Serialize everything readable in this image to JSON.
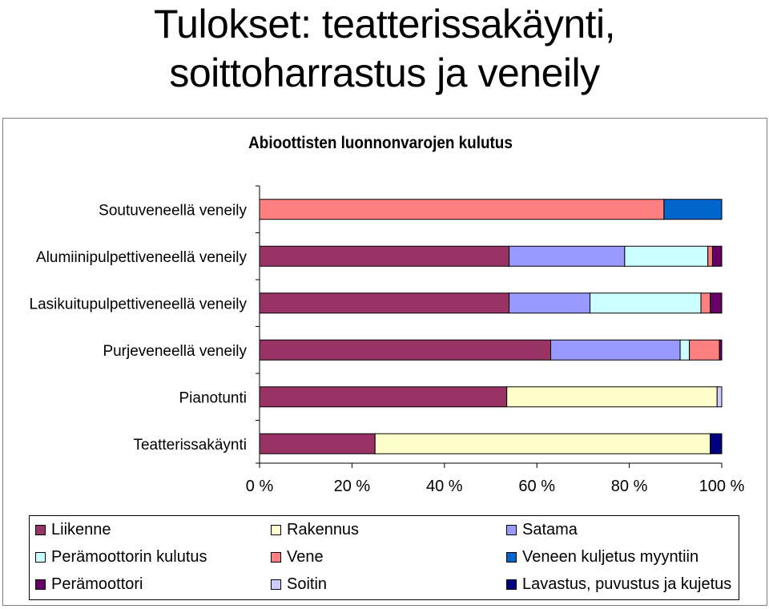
{
  "slide": {
    "title_line1": "Tulokset: teatterissakäynti,",
    "title_line2": "soittoharrastus ja veneily"
  },
  "chart_data": {
    "type": "bar",
    "orientation": "horizontal",
    "stacked": "percent",
    "title": "Abioottisten luonnonvarojen kulutus",
    "categories": [
      "Soutuveneellä veneily",
      "Alumiinipulpettiveneellä veneily",
      "Lasikuitupulpettiveneellä veneily",
      "Purjeveneellä veneily",
      "Pianotunti",
      "Teatterissakäynti"
    ],
    "xlim": [
      0,
      100
    ],
    "xticks": [
      "0 %",
      "20 %",
      "40 %",
      "60 %",
      "80 %",
      "100 %"
    ],
    "grid": false,
    "legend_position": "bottom",
    "series": [
      {
        "name": "Liikenne",
        "color": "#993366",
        "values": [
          0,
          54,
          54,
          63,
          53.5,
          25
        ]
      },
      {
        "name": "Rakennus",
        "color": "#FFFFCC",
        "values": [
          0,
          0,
          0,
          0,
          45.5,
          72.5
        ]
      },
      {
        "name": "Satama",
        "color": "#9999FF",
        "values": [
          0,
          25,
          17.5,
          28,
          0,
          0
        ]
      },
      {
        "name": "Perämoottorin kulutus",
        "color": "#CCFFFF",
        "values": [
          0,
          18,
          24,
          2,
          0,
          0
        ]
      },
      {
        "name": "Vene",
        "color": "#FF8080",
        "values": [
          87.5,
          1,
          2,
          6.5,
          0,
          0
        ]
      },
      {
        "name": "Veneen kuljetus myyntiin",
        "color": "#0066CC",
        "values": [
          12.5,
          0,
          0,
          0,
          0,
          0
        ]
      },
      {
        "name": "Perämoottori",
        "color": "#660066",
        "values": [
          0,
          2,
          2.5,
          0.5,
          0,
          0
        ]
      },
      {
        "name": "Soitin",
        "color": "#CCCCFF",
        "values": [
          0,
          0,
          0,
          0,
          1,
          0
        ]
      },
      {
        "name": "Lavastus, puvustus ja kujetus",
        "color": "#000080",
        "values": [
          0,
          0,
          0,
          0,
          0,
          2.5
        ]
      }
    ]
  }
}
